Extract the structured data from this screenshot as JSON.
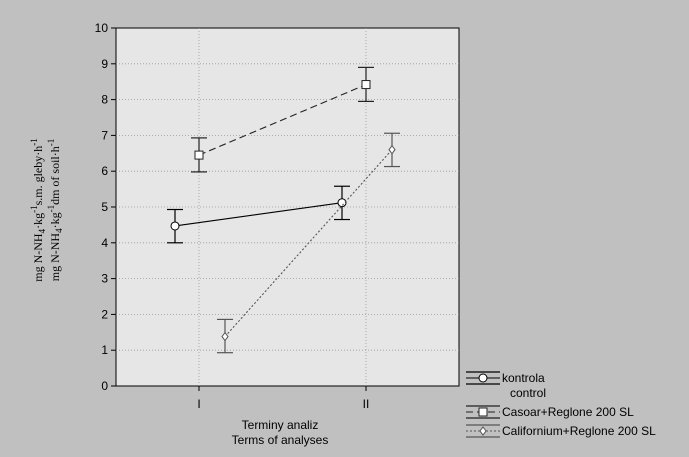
{
  "chart_data": {
    "type": "line",
    "categories": [
      "I",
      "II"
    ],
    "xlabel": [
      "Terminy analiz",
      "Terms of analyses"
    ],
    "ylabel": {
      "line1": {
        "a": "mg N-NH",
        "sub1": "4",
        "b": "·kg",
        "sup1": "-1",
        "c": "s.m. gleby·h",
        "sup2": "-1"
      },
      "line2": {
        "a": "mg N-NH",
        "sub1": "4",
        "b": "·kg",
        "sup1": "-1",
        "c": "dm of soil·h",
        "sup2": "-1"
      }
    },
    "ylim": [
      0,
      10
    ],
    "yticks": [
      0,
      1,
      2,
      3,
      4,
      5,
      6,
      7,
      8,
      9,
      10
    ],
    "grid": true,
    "legend_position": "bottom-right",
    "series": [
      {
        "name": "kontrola",
        "name2": "control",
        "marker": "circle",
        "dash": "solid",
        "values": [
          4.47,
          5.12
        ],
        "err_low": [
          4.0,
          4.65
        ],
        "err_high": [
          4.93,
          5.58
        ]
      },
      {
        "name": "Casoar+Reglone 200 SL",
        "marker": "square",
        "dash": "dashed",
        "values": [
          6.45,
          8.42
        ],
        "err_low": [
          5.98,
          7.95
        ],
        "err_high": [
          6.93,
          8.9
        ]
      },
      {
        "name": "Californium+Reglone 200 SL",
        "marker": "diamond",
        "dash": "dotted",
        "values": [
          1.38,
          6.6
        ],
        "err_low": [
          0.93,
          6.13
        ],
        "err_high": [
          1.86,
          7.06
        ]
      }
    ]
  }
}
